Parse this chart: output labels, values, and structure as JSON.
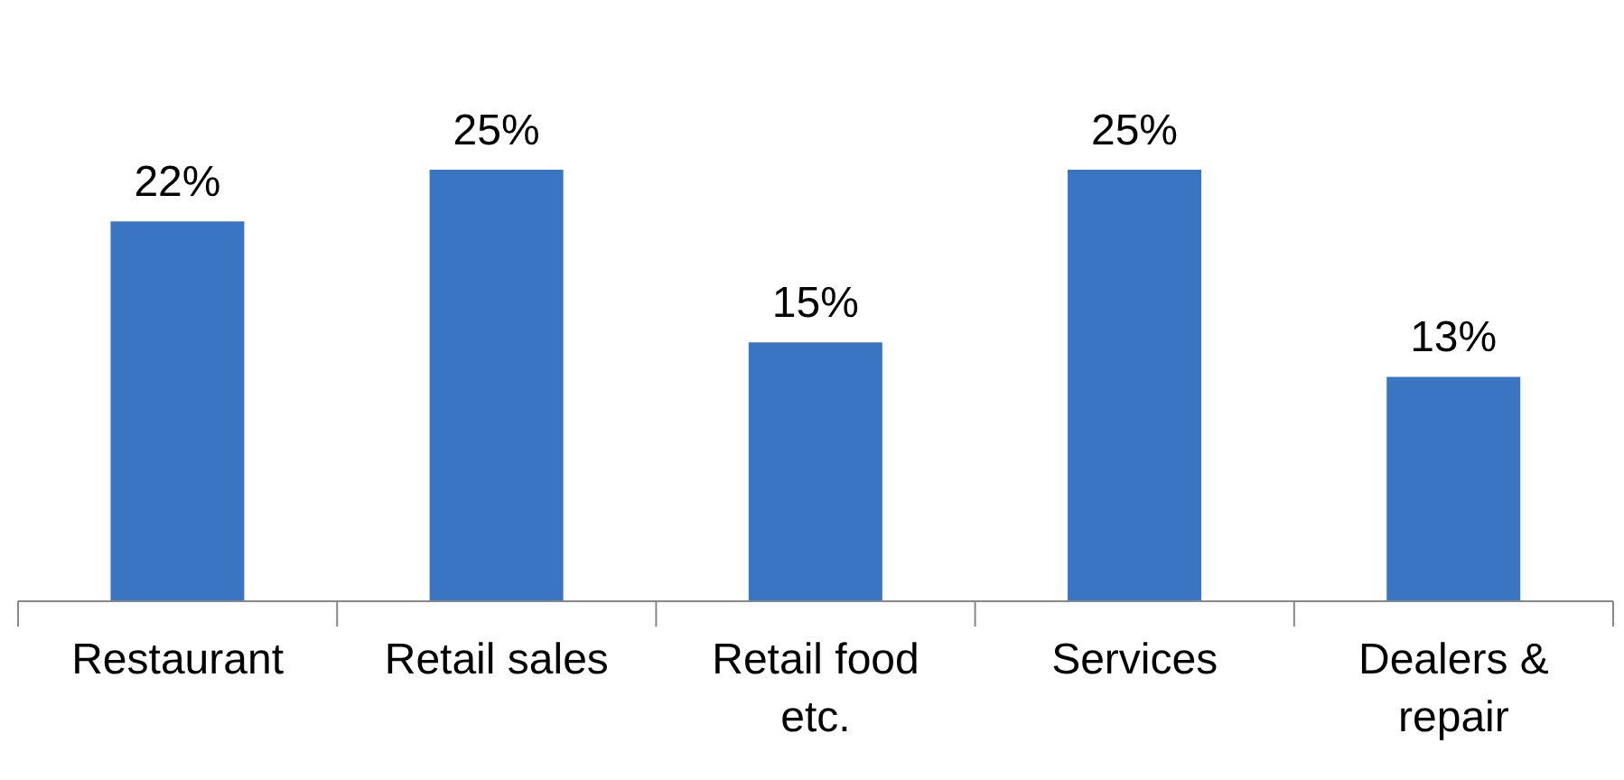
{
  "chart_data": {
    "type": "bar",
    "categories": [
      "Restaurant",
      "Retail sales",
      "Retail food etc.",
      "Services",
      "Dealers & repair"
    ],
    "values": [
      22,
      25,
      15,
      25,
      13
    ],
    "value_labels": [
      "22%",
      "25%",
      "15%",
      "25%",
      "13%"
    ],
    "color": "#3a75c4",
    "tick_labels": "x",
    "grid": false,
    "legend": false
  }
}
